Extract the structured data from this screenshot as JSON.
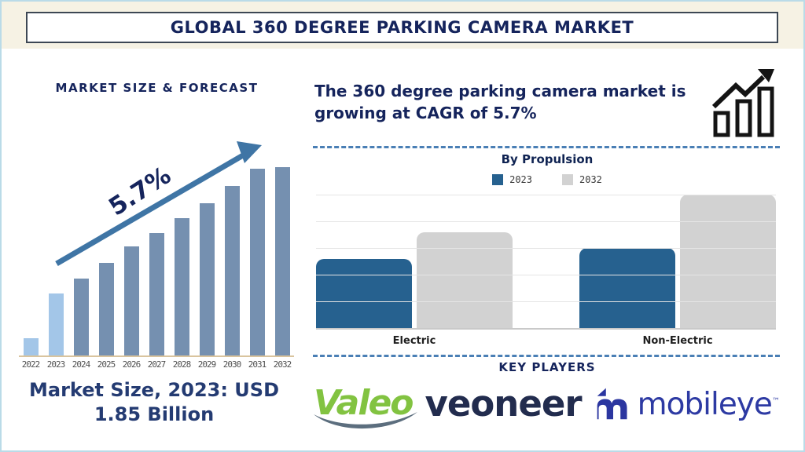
{
  "page": {
    "title": "GLOBAL 360 DEGREE PARKING CAMERA MARKET"
  },
  "left_panel": {
    "heading": "MARKET SIZE & FORECAST",
    "growth_label": "5.7%",
    "caption": "Market Size, 2023: USD 1.85 Billion"
  },
  "right_panel": {
    "headline": "The 360 degree parking camera market is growing at CAGR of 5.7%",
    "by_propulsion_title": "By Propulsion",
    "key_players_title": "KEY PLAYERS",
    "logos": [
      {
        "name": "Valeo",
        "color": "#82c341"
      },
      {
        "name": "veoneer",
        "color": "#222c4e"
      },
      {
        "name": "mobileye",
        "tm": "™",
        "color": "#2d3aa3"
      }
    ]
  },
  "chart_data": [
    {
      "type": "bar",
      "title": "MARKET SIZE & FORECAST",
      "categories": [
        "2022",
        "2023",
        "2024",
        "2025",
        "2026",
        "2027",
        "2028",
        "2029",
        "2030",
        "2031",
        "2032"
      ],
      "values": [
        9,
        33,
        41,
        49,
        58,
        65,
        73,
        81,
        90,
        99,
        100
      ],
      "value_note": "relative bar heights, % of 2032 bar (no y-axis shown)",
      "annotation": "5.7%",
      "highlight_years": [
        "2022",
        "2023"
      ],
      "colors": {
        "highlight": "#a3c6e8",
        "normal": "#7590b0",
        "arrow": "#3f75a5"
      },
      "xlabel": "",
      "ylabel": "",
      "grid": "off",
      "market_size_2023": "USD 1.85 Billion"
    },
    {
      "type": "bar",
      "title": "By Propulsion",
      "categories": [
        "Electric",
        "Non-Electric"
      ],
      "series": [
        {
          "name": "2023",
          "color": "#26618f",
          "values": [
            52,
            60
          ]
        },
        {
          "name": "2032",
          "color": "#d2d2d2",
          "values": [
            72,
            100
          ]
        }
      ],
      "value_note": "relative bar heights, % of tallest bar (no y-axis labels shown)",
      "grid": "horizontal",
      "legend_position": "top"
    }
  ]
}
